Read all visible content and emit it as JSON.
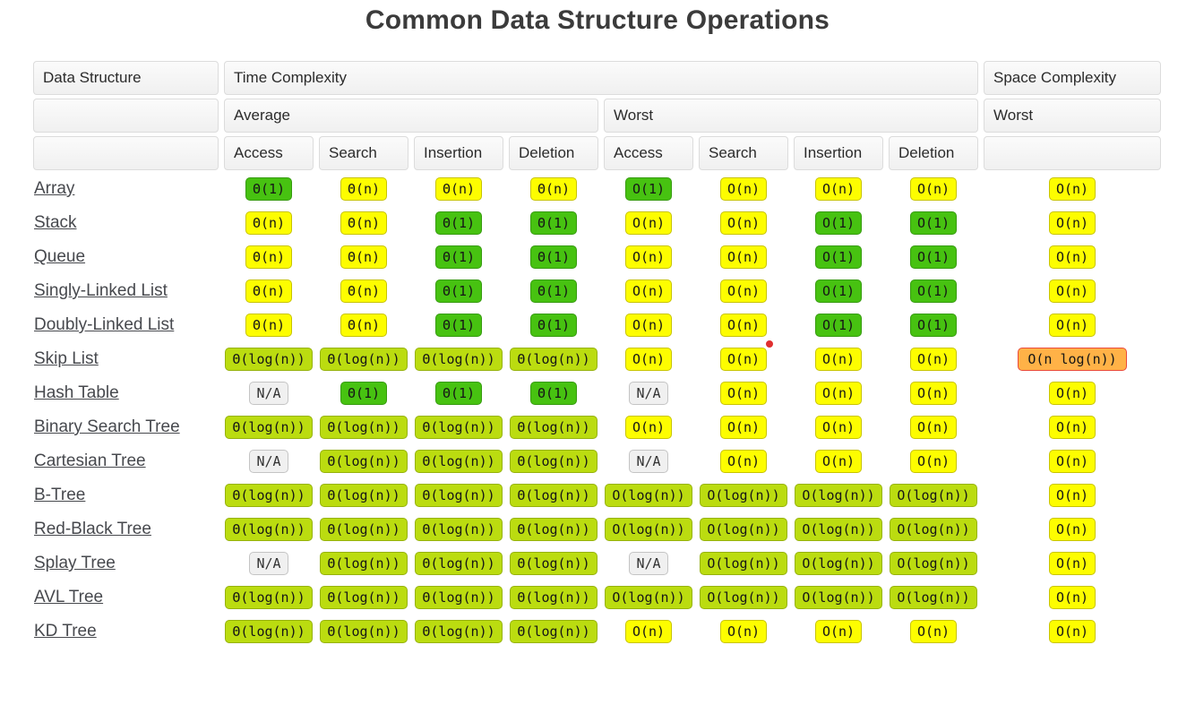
{
  "title": "Common Data Structure Operations",
  "marker": {
    "color": "#e02f2f"
  },
  "palette": {
    "green": "#47c211",
    "yellow_green": "#bbdc10",
    "yellow": "#fdfd00",
    "orange": "#ffb247",
    "gray": "#f0f0f0"
  },
  "table": {
    "headers": {
      "data_structure": "Data Structure",
      "time_complexity": "Time Complexity",
      "space_complexity": "Space Complexity",
      "average": "Average",
      "worst": "Worst",
      "space_worst": "Worst",
      "ops": [
        "Access",
        "Search",
        "Insertion",
        "Deletion",
        "Access",
        "Search",
        "Insertion",
        "Deletion"
      ]
    },
    "rows": [
      {
        "name": "Array",
        "cells": [
          {
            "t": "Θ(1)",
            "c": "green"
          },
          {
            "t": "Θ(n)",
            "c": "yellow"
          },
          {
            "t": "Θ(n)",
            "c": "yellow"
          },
          {
            "t": "Θ(n)",
            "c": "yellow"
          },
          {
            "t": "O(1)",
            "c": "green"
          },
          {
            "t": "O(n)",
            "c": "yellow"
          },
          {
            "t": "O(n)",
            "c": "yellow"
          },
          {
            "t": "O(n)",
            "c": "yellow"
          },
          {
            "t": "O(n)",
            "c": "yellow"
          }
        ]
      },
      {
        "name": "Stack",
        "cells": [
          {
            "t": "Θ(n)",
            "c": "yellow"
          },
          {
            "t": "Θ(n)",
            "c": "yellow"
          },
          {
            "t": "Θ(1)",
            "c": "green"
          },
          {
            "t": "Θ(1)",
            "c": "green"
          },
          {
            "t": "O(n)",
            "c": "yellow"
          },
          {
            "t": "O(n)",
            "c": "yellow"
          },
          {
            "t": "O(1)",
            "c": "green"
          },
          {
            "t": "O(1)",
            "c": "green"
          },
          {
            "t": "O(n)",
            "c": "yellow"
          }
        ]
      },
      {
        "name": "Queue",
        "cells": [
          {
            "t": "Θ(n)",
            "c": "yellow"
          },
          {
            "t": "Θ(n)",
            "c": "yellow"
          },
          {
            "t": "Θ(1)",
            "c": "green"
          },
          {
            "t": "Θ(1)",
            "c": "green"
          },
          {
            "t": "O(n)",
            "c": "yellow"
          },
          {
            "t": "O(n)",
            "c": "yellow"
          },
          {
            "t": "O(1)",
            "c": "green"
          },
          {
            "t": "O(1)",
            "c": "green"
          },
          {
            "t": "O(n)",
            "c": "yellow"
          }
        ]
      },
      {
        "name": "Singly-Linked List",
        "cells": [
          {
            "t": "Θ(n)",
            "c": "yellow"
          },
          {
            "t": "Θ(n)",
            "c": "yellow"
          },
          {
            "t": "Θ(1)",
            "c": "green"
          },
          {
            "t": "Θ(1)",
            "c": "green"
          },
          {
            "t": "O(n)",
            "c": "yellow"
          },
          {
            "t": "O(n)",
            "c": "yellow"
          },
          {
            "t": "O(1)",
            "c": "green"
          },
          {
            "t": "O(1)",
            "c": "green"
          },
          {
            "t": "O(n)",
            "c": "yellow"
          }
        ]
      },
      {
        "name": "Doubly-Linked List",
        "cells": [
          {
            "t": "Θ(n)",
            "c": "yellow"
          },
          {
            "t": "Θ(n)",
            "c": "yellow"
          },
          {
            "t": "Θ(1)",
            "c": "green"
          },
          {
            "t": "Θ(1)",
            "c": "green"
          },
          {
            "t": "O(n)",
            "c": "yellow"
          },
          {
            "t": "O(n)",
            "c": "yellow"
          },
          {
            "t": "O(1)",
            "c": "green"
          },
          {
            "t": "O(1)",
            "c": "green"
          },
          {
            "t": "O(n)",
            "c": "yellow"
          }
        ]
      },
      {
        "name": "Skip List",
        "cells": [
          {
            "t": "Θ(log(n))",
            "c": "yellowgreen"
          },
          {
            "t": "Θ(log(n))",
            "c": "yellowgreen"
          },
          {
            "t": "Θ(log(n))",
            "c": "yellowgreen"
          },
          {
            "t": "Θ(log(n))",
            "c": "yellowgreen"
          },
          {
            "t": "O(n)",
            "c": "yellow"
          },
          {
            "t": "O(n)",
            "c": "yellow"
          },
          {
            "t": "O(n)",
            "c": "yellow"
          },
          {
            "t": "O(n)",
            "c": "yellow"
          },
          {
            "t": "O(n log(n))",
            "c": "orange"
          }
        ]
      },
      {
        "name": "Hash Table",
        "cells": [
          {
            "t": "N/A",
            "c": "gray"
          },
          {
            "t": "Θ(1)",
            "c": "green"
          },
          {
            "t": "Θ(1)",
            "c": "green"
          },
          {
            "t": "Θ(1)",
            "c": "green"
          },
          {
            "t": "N/A",
            "c": "gray"
          },
          {
            "t": "O(n)",
            "c": "yellow"
          },
          {
            "t": "O(n)",
            "c": "yellow"
          },
          {
            "t": "O(n)",
            "c": "yellow"
          },
          {
            "t": "O(n)",
            "c": "yellow"
          }
        ]
      },
      {
        "name": "Binary Search Tree",
        "cells": [
          {
            "t": "Θ(log(n))",
            "c": "yellowgreen"
          },
          {
            "t": "Θ(log(n))",
            "c": "yellowgreen"
          },
          {
            "t": "Θ(log(n))",
            "c": "yellowgreen"
          },
          {
            "t": "Θ(log(n))",
            "c": "yellowgreen"
          },
          {
            "t": "O(n)",
            "c": "yellow"
          },
          {
            "t": "O(n)",
            "c": "yellow"
          },
          {
            "t": "O(n)",
            "c": "yellow"
          },
          {
            "t": "O(n)",
            "c": "yellow"
          },
          {
            "t": "O(n)",
            "c": "yellow"
          }
        ]
      },
      {
        "name": "Cartesian Tree",
        "cells": [
          {
            "t": "N/A",
            "c": "gray"
          },
          {
            "t": "Θ(log(n))",
            "c": "yellowgreen"
          },
          {
            "t": "Θ(log(n))",
            "c": "yellowgreen"
          },
          {
            "t": "Θ(log(n))",
            "c": "yellowgreen"
          },
          {
            "t": "N/A",
            "c": "gray"
          },
          {
            "t": "O(n)",
            "c": "yellow"
          },
          {
            "t": "O(n)",
            "c": "yellow"
          },
          {
            "t": "O(n)",
            "c": "yellow"
          },
          {
            "t": "O(n)",
            "c": "yellow"
          }
        ]
      },
      {
        "name": "B-Tree",
        "cells": [
          {
            "t": "Θ(log(n))",
            "c": "yellowgreen"
          },
          {
            "t": "Θ(log(n))",
            "c": "yellowgreen"
          },
          {
            "t": "Θ(log(n))",
            "c": "yellowgreen"
          },
          {
            "t": "Θ(log(n))",
            "c": "yellowgreen"
          },
          {
            "t": "O(log(n))",
            "c": "yellowgreen"
          },
          {
            "t": "O(log(n))",
            "c": "yellowgreen"
          },
          {
            "t": "O(log(n))",
            "c": "yellowgreen"
          },
          {
            "t": "O(log(n))",
            "c": "yellowgreen"
          },
          {
            "t": "O(n)",
            "c": "yellow"
          }
        ]
      },
      {
        "name": "Red-Black Tree",
        "cells": [
          {
            "t": "Θ(log(n))",
            "c": "yellowgreen"
          },
          {
            "t": "Θ(log(n))",
            "c": "yellowgreen"
          },
          {
            "t": "Θ(log(n))",
            "c": "yellowgreen"
          },
          {
            "t": "Θ(log(n))",
            "c": "yellowgreen"
          },
          {
            "t": "O(log(n))",
            "c": "yellowgreen"
          },
          {
            "t": "O(log(n))",
            "c": "yellowgreen"
          },
          {
            "t": "O(log(n))",
            "c": "yellowgreen"
          },
          {
            "t": "O(log(n))",
            "c": "yellowgreen"
          },
          {
            "t": "O(n)",
            "c": "yellow"
          }
        ]
      },
      {
        "name": "Splay Tree",
        "cells": [
          {
            "t": "N/A",
            "c": "gray"
          },
          {
            "t": "Θ(log(n))",
            "c": "yellowgreen"
          },
          {
            "t": "Θ(log(n))",
            "c": "yellowgreen"
          },
          {
            "t": "Θ(log(n))",
            "c": "yellowgreen"
          },
          {
            "t": "N/A",
            "c": "gray"
          },
          {
            "t": "O(log(n))",
            "c": "yellowgreen"
          },
          {
            "t": "O(log(n))",
            "c": "yellowgreen"
          },
          {
            "t": "O(log(n))",
            "c": "yellowgreen"
          },
          {
            "t": "O(n)",
            "c": "yellow"
          }
        ]
      },
      {
        "name": "AVL Tree",
        "cells": [
          {
            "t": "Θ(log(n))",
            "c": "yellowgreen"
          },
          {
            "t": "Θ(log(n))",
            "c": "yellowgreen"
          },
          {
            "t": "Θ(log(n))",
            "c": "yellowgreen"
          },
          {
            "t": "Θ(log(n))",
            "c": "yellowgreen"
          },
          {
            "t": "O(log(n))",
            "c": "yellowgreen"
          },
          {
            "t": "O(log(n))",
            "c": "yellowgreen"
          },
          {
            "t": "O(log(n))",
            "c": "yellowgreen"
          },
          {
            "t": "O(log(n))",
            "c": "yellowgreen"
          },
          {
            "t": "O(n)",
            "c": "yellow"
          }
        ]
      },
      {
        "name": "KD Tree",
        "cells": [
          {
            "t": "Θ(log(n))",
            "c": "yellowgreen"
          },
          {
            "t": "Θ(log(n))",
            "c": "yellowgreen"
          },
          {
            "t": "Θ(log(n))",
            "c": "yellowgreen"
          },
          {
            "t": "Θ(log(n))",
            "c": "yellowgreen"
          },
          {
            "t": "O(n)",
            "c": "yellow"
          },
          {
            "t": "O(n)",
            "c": "yellow"
          },
          {
            "t": "O(n)",
            "c": "yellow"
          },
          {
            "t": "O(n)",
            "c": "yellow"
          },
          {
            "t": "O(n)",
            "c": "yellow"
          }
        ]
      }
    ]
  }
}
